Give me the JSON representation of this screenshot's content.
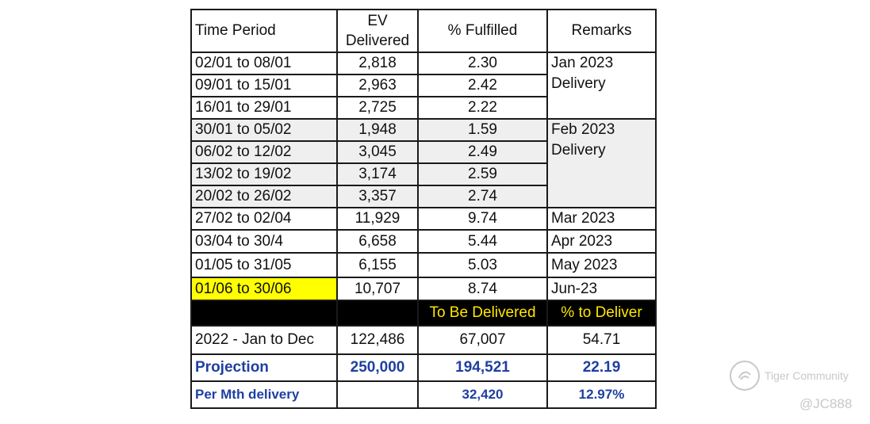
{
  "header": {
    "time_period": "Time Period",
    "ev_delivered_1": "EV",
    "ev_delivered_2": "Delivered",
    "fulfilled": "% Fulfilled",
    "remarks": "Remarks"
  },
  "rows": [
    {
      "period": "02/01 to 08/01",
      "ev": "2,818",
      "pct": "2.30"
    },
    {
      "period": "09/01 to 15/01",
      "ev": "2,963",
      "pct": "2.42"
    },
    {
      "period": "16/01 to 29/01",
      "ev": "2,725",
      "pct": "2.22"
    },
    {
      "period": "30/01 to 05/02",
      "ev": "1,948",
      "pct": "1.59"
    },
    {
      "period": "06/02 to 12/02",
      "ev": "3,045",
      "pct": "2.49"
    },
    {
      "period": "13/02 to 19/02",
      "ev": "3,174",
      "pct": "2.59"
    },
    {
      "period": "20/02 to 26/02",
      "ev": "3,357",
      "pct": "2.74"
    },
    {
      "period": "27/02 to 02/04",
      "ev": "11,929",
      "pct": "9.74",
      "remark": "Mar 2023"
    },
    {
      "period": "03/04 to 30/4",
      "ev": "6,658",
      "pct": "5.44",
      "remark": "Apr 2023"
    },
    {
      "period": "01/05 to 31/05",
      "ev": "6,155",
      "pct": "5.03",
      "remark": "May 2023"
    },
    {
      "period": "01/06 to 30/06",
      "ev": "10,707",
      "pct": "8.74",
      "remark": "Jun-23"
    }
  ],
  "remark_groups": {
    "jan": {
      "line1": "Jan 2023",
      "line2": "Delivery"
    },
    "feb": {
      "line1": "Feb 2023",
      "line2": "Delivery"
    }
  },
  "subheader": {
    "to_be_delivered": "To Be Delivered",
    "pct_to_deliver": "% to Deliver"
  },
  "summary": [
    {
      "label": "2022 - Jan to Dec",
      "ev": "122,486",
      "to_deliver": "67,007",
      "pct": "54.71"
    },
    {
      "label": "Projection",
      "ev": "250,000",
      "to_deliver": "194,521",
      "pct": "22.19"
    },
    {
      "label": "Per Mth delivery",
      "ev": "",
      "to_deliver": "32,420",
      "pct": "12.97%"
    }
  ],
  "watermark": {
    "brand": "Tiger Community",
    "handle": "@JC888"
  },
  "colors": {
    "highlight_yellow": "#ffff00",
    "header_black": "#000000",
    "header_text_yellow": "#ffe600",
    "projection_blue": "#1f3fa0",
    "feb_gray": "#efefef"
  }
}
